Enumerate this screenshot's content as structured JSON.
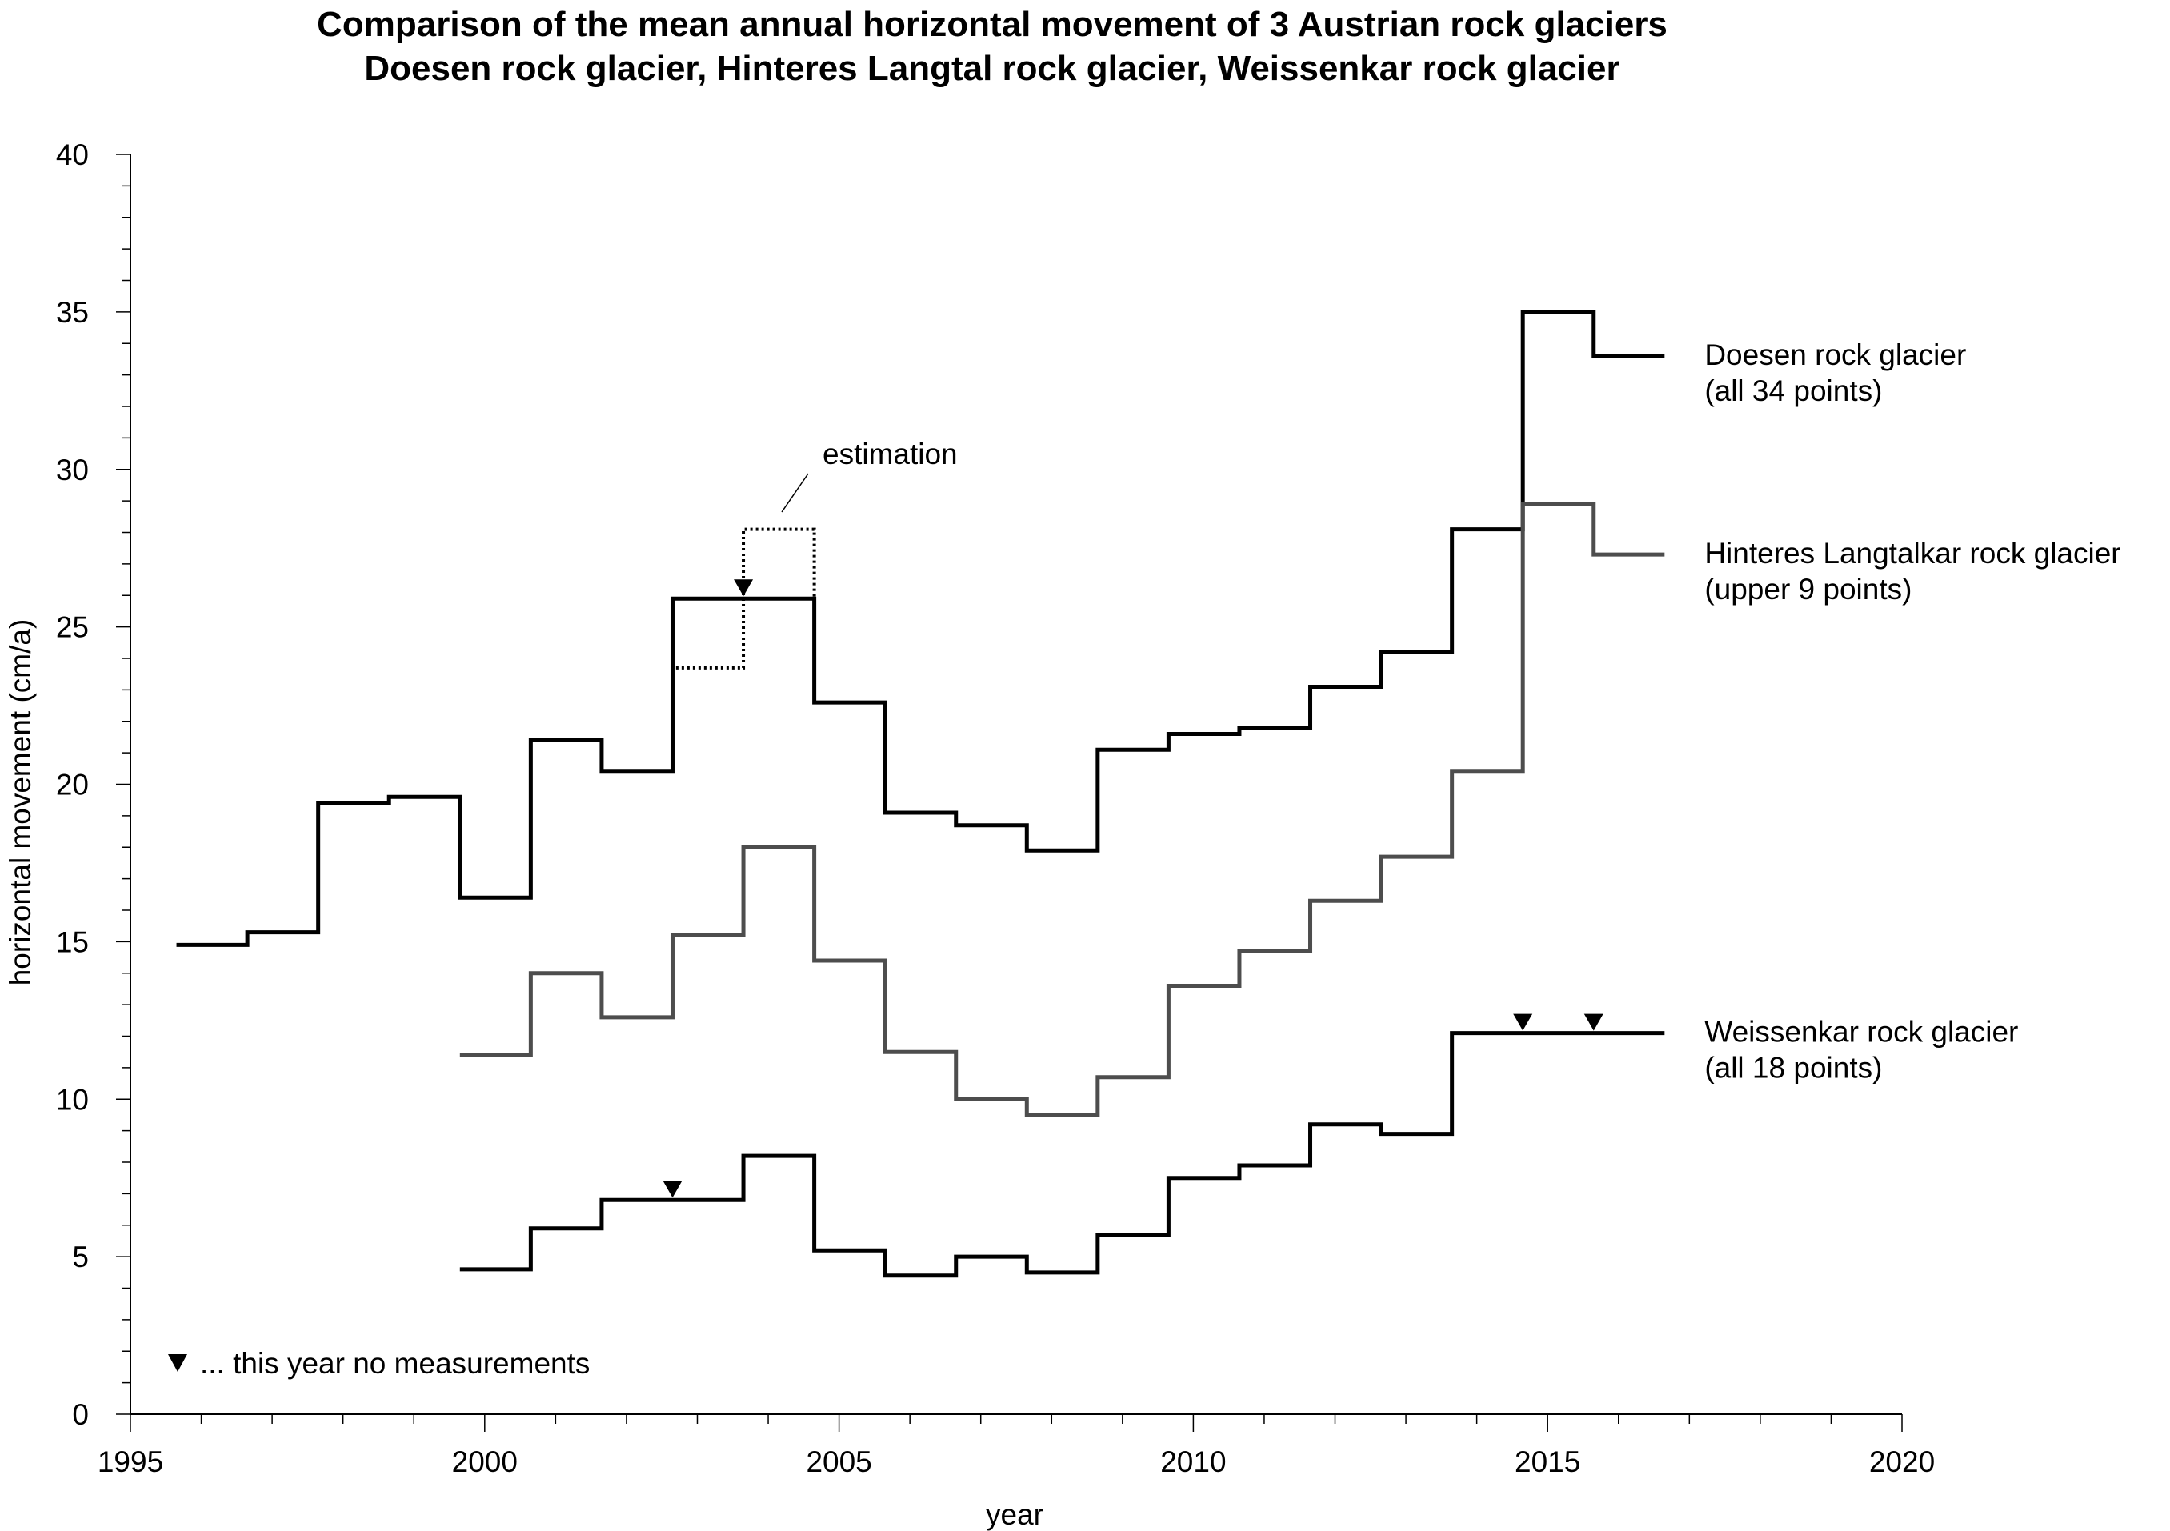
{
  "chart_data": {
    "type": "line",
    "step": true,
    "title": "Comparison of the mean annual horizontal movement of 3 Austrian rock glaciers",
    "subtitle": "Doesen rock glacier, Hinteres Langtal rock glacier, Weissenkar rock glacier",
    "xlabel": "year",
    "ylabel": "horizontal movement (cm/a)",
    "xlim": [
      1995,
      2020
    ],
    "ylim": [
      0,
      40
    ],
    "x_ticks": [
      "1995",
      "2000",
      "2005",
      "2010",
      "2015",
      "2020"
    ],
    "y_ticks": [
      "0",
      "5",
      "10",
      "15",
      "20",
      "25",
      "30",
      "35",
      "40"
    ],
    "grid": false,
    "series": [
      {
        "label_line1": "Doesen rock glacier",
        "label_line2": "(all 34 points)",
        "color": "#000000",
        "x_start": [
          1995.65,
          1996.65,
          1997.65,
          1998.65,
          1999.65,
          2000.65,
          2001.65,
          2002.65,
          2003.65,
          2004.65,
          2005.65,
          2006.65,
          2007.65,
          2008.65,
          2009.65,
          2010.65,
          2011.65,
          2012.65,
          2013.65,
          2014.65,
          2015.65
        ],
        "x_end": [
          1996.65,
          1997.65,
          1998.65,
          1999.65,
          2000.65,
          2001.65,
          2002.65,
          2003.65,
          2004.65,
          2005.65,
          2006.65,
          2007.65,
          2008.65,
          2009.65,
          2010.65,
          2011.65,
          2012.65,
          2013.65,
          2014.65,
          2015.65,
          2016.65
        ],
        "values": [
          14.9,
          15.3,
          19.4,
          19.6,
          16.4,
          21.4,
          20.4,
          25.9,
          25.9,
          22.6,
          19.1,
          18.7,
          17.9,
          21.1,
          21.6,
          21.8,
          23.1,
          24.2,
          28.1,
          35.0,
          33.6
        ]
      },
      {
        "label_line1": "Hinteres Langtalkar rock glacier",
        "label_line2": "(upper 9 points)",
        "color": "#4d4d4d",
        "x_start": [
          1999.65,
          2000.65,
          2001.65,
          2002.65,
          2003.65,
          2004.65,
          2005.65,
          2006.65,
          2007.65,
          2008.65,
          2009.65,
          2010.65,
          2011.65,
          2012.65,
          2013.65,
          2014.65,
          2015.65
        ],
        "x_end": [
          2000.65,
          2001.65,
          2002.65,
          2003.65,
          2004.65,
          2005.65,
          2006.65,
          2007.65,
          2008.65,
          2009.65,
          2010.65,
          2011.65,
          2012.65,
          2013.65,
          2014.65,
          2015.65,
          2016.65
        ],
        "values": [
          11.4,
          14.0,
          12.6,
          15.2,
          18.0,
          14.4,
          11.5,
          10.0,
          9.5,
          10.7,
          13.6,
          14.7,
          16.3,
          17.7,
          20.4,
          28.9,
          27.3
        ]
      },
      {
        "label_line1": "Weissenkar rock glacier",
        "label_line2": "(all 18 points)",
        "color": "#000000",
        "x_start": [
          1999.65,
          2000.65,
          2001.65,
          2002.65,
          2003.65,
          2004.65,
          2005.65,
          2006.65,
          2007.65,
          2008.65,
          2009.65,
          2010.65,
          2011.65,
          2012.65,
          2013.65,
          2014.65,
          2015.65
        ],
        "x_end": [
          2000.65,
          2001.65,
          2002.65,
          2003.65,
          2004.65,
          2005.65,
          2006.65,
          2007.65,
          2008.65,
          2009.65,
          2010.65,
          2011.65,
          2012.65,
          2013.65,
          2014.65,
          2015.65,
          2016.65
        ],
        "values": [
          4.6,
          5.9,
          6.8,
          6.8,
          8.2,
          5.2,
          4.4,
          5.0,
          4.5,
          5.7,
          7.5,
          7.9,
          9.2,
          8.9,
          12.1,
          12.1,
          12.1
        ]
      }
    ],
    "estimation": {
      "label": "estimation",
      "x_start": [
        2002.65,
        2003.65
      ],
      "x_end": [
        2003.65,
        2004.65
      ],
      "values": [
        23.7,
        28.1
      ]
    },
    "no_measurement_markers": [
      {
        "x": 2003.65,
        "y": 25.9
      },
      {
        "x": 2002.65,
        "y": 6.8
      },
      {
        "x": 2014.65,
        "y": 12.1
      },
      {
        "x": 2015.65,
        "y": 12.1
      }
    ],
    "legend_note": "... this year no measurements"
  }
}
